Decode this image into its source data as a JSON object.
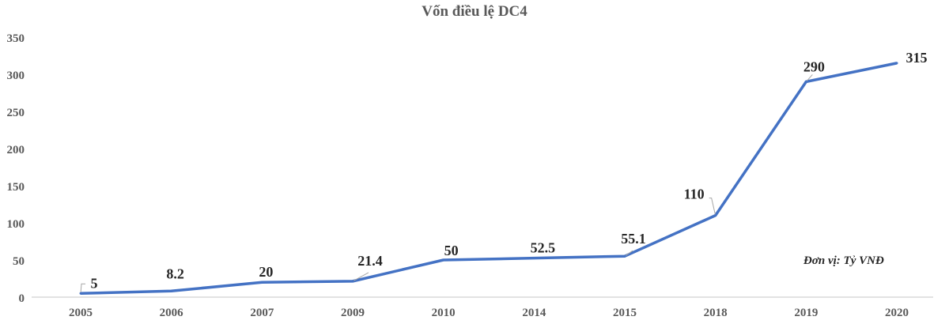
{
  "chart_data": {
    "type": "line",
    "title": "Vốn điều lệ DC4",
    "categories": [
      "2005",
      "2006",
      "2007",
      "2009",
      "2010",
      "2014",
      "2015",
      "2018",
      "2019",
      "2020"
    ],
    "series": [
      {
        "values": [
          5,
          8.2,
          20,
          21.4,
          50,
          52.5,
          55.1,
          110,
          290,
          315
        ],
        "color": "#4472C4"
      }
    ],
    "data_labels": [
      "5",
      "8.2",
      "20",
      "21.4",
      "50",
      "52.5",
      "55.1",
      "110",
      "290",
      "315"
    ],
    "yticks": [
      "0",
      "50",
      "100",
      "150",
      "200",
      "250",
      "300",
      "350"
    ],
    "ylim": [
      0,
      350
    ],
    "grid": false,
    "legend": "none",
    "annotation": "Đơn vị: Tỷ VNĐ"
  }
}
